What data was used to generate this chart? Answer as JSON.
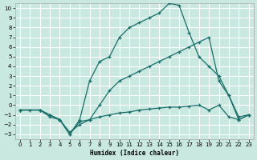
{
  "xlabel": "Humidex (Indice chaleur)",
  "background_color": "#c8e8e0",
  "grid_color": "#ffffff",
  "line_color": "#1a6e6a",
  "xlim": [
    -0.5,
    23.5
  ],
  "ylim": [
    -3.5,
    10.5
  ],
  "xticks": [
    0,
    1,
    2,
    3,
    4,
    5,
    6,
    7,
    8,
    9,
    10,
    11,
    12,
    13,
    14,
    15,
    16,
    17,
    18,
    19,
    20,
    21,
    22,
    23
  ],
  "yticks": [
    -3,
    -2,
    -1,
    0,
    1,
    2,
    3,
    4,
    5,
    6,
    7,
    8,
    9,
    10
  ],
  "line1_x": [
    0,
    1,
    2,
    3,
    4,
    5,
    6,
    7,
    8,
    9,
    10,
    11,
    12,
    13,
    14,
    15,
    16,
    17,
    18,
    19,
    20,
    21,
    22,
    23
  ],
  "line1_y": [
    -0.5,
    -0.5,
    -0.5,
    -1.0,
    -1.5,
    -3.0,
    -1.7,
    -1.5,
    -1.2,
    -1.0,
    -0.8,
    -0.7,
    -0.5,
    -0.4,
    -0.3,
    -0.2,
    -0.2,
    -0.1,
    0.0,
    -0.5,
    0.0,
    -1.2,
    -1.5,
    -1.0
  ],
  "line2_x": [
    0,
    2,
    3,
    4,
    5,
    6,
    7,
    8,
    9,
    10,
    11,
    12,
    13,
    14,
    15,
    16,
    17,
    18,
    19,
    20,
    21,
    22,
    23
  ],
  "line2_y": [
    -0.5,
    -0.5,
    -1.0,
    -1.5,
    -3.0,
    -1.5,
    2.5,
    4.5,
    5.0,
    7.0,
    8.0,
    8.5,
    9.0,
    9.5,
    10.5,
    10.3,
    7.5,
    5.0,
    4.0,
    3.0,
    1.0,
    -1.5,
    -1.0
  ],
  "line3_x": [
    0,
    2,
    3,
    4,
    5,
    6,
    7,
    8,
    9,
    10,
    11,
    12,
    13,
    14,
    15,
    16,
    17,
    18,
    19,
    20,
    21,
    22,
    23
  ],
  "line3_y": [
    -0.5,
    -0.5,
    -1.2,
    -1.5,
    -2.8,
    -2.0,
    -1.5,
    0.0,
    1.5,
    2.5,
    3.0,
    3.5,
    4.0,
    4.5,
    5.0,
    5.5,
    6.0,
    6.5,
    7.0,
    2.5,
    1.0,
    -1.2,
    -1.0
  ]
}
